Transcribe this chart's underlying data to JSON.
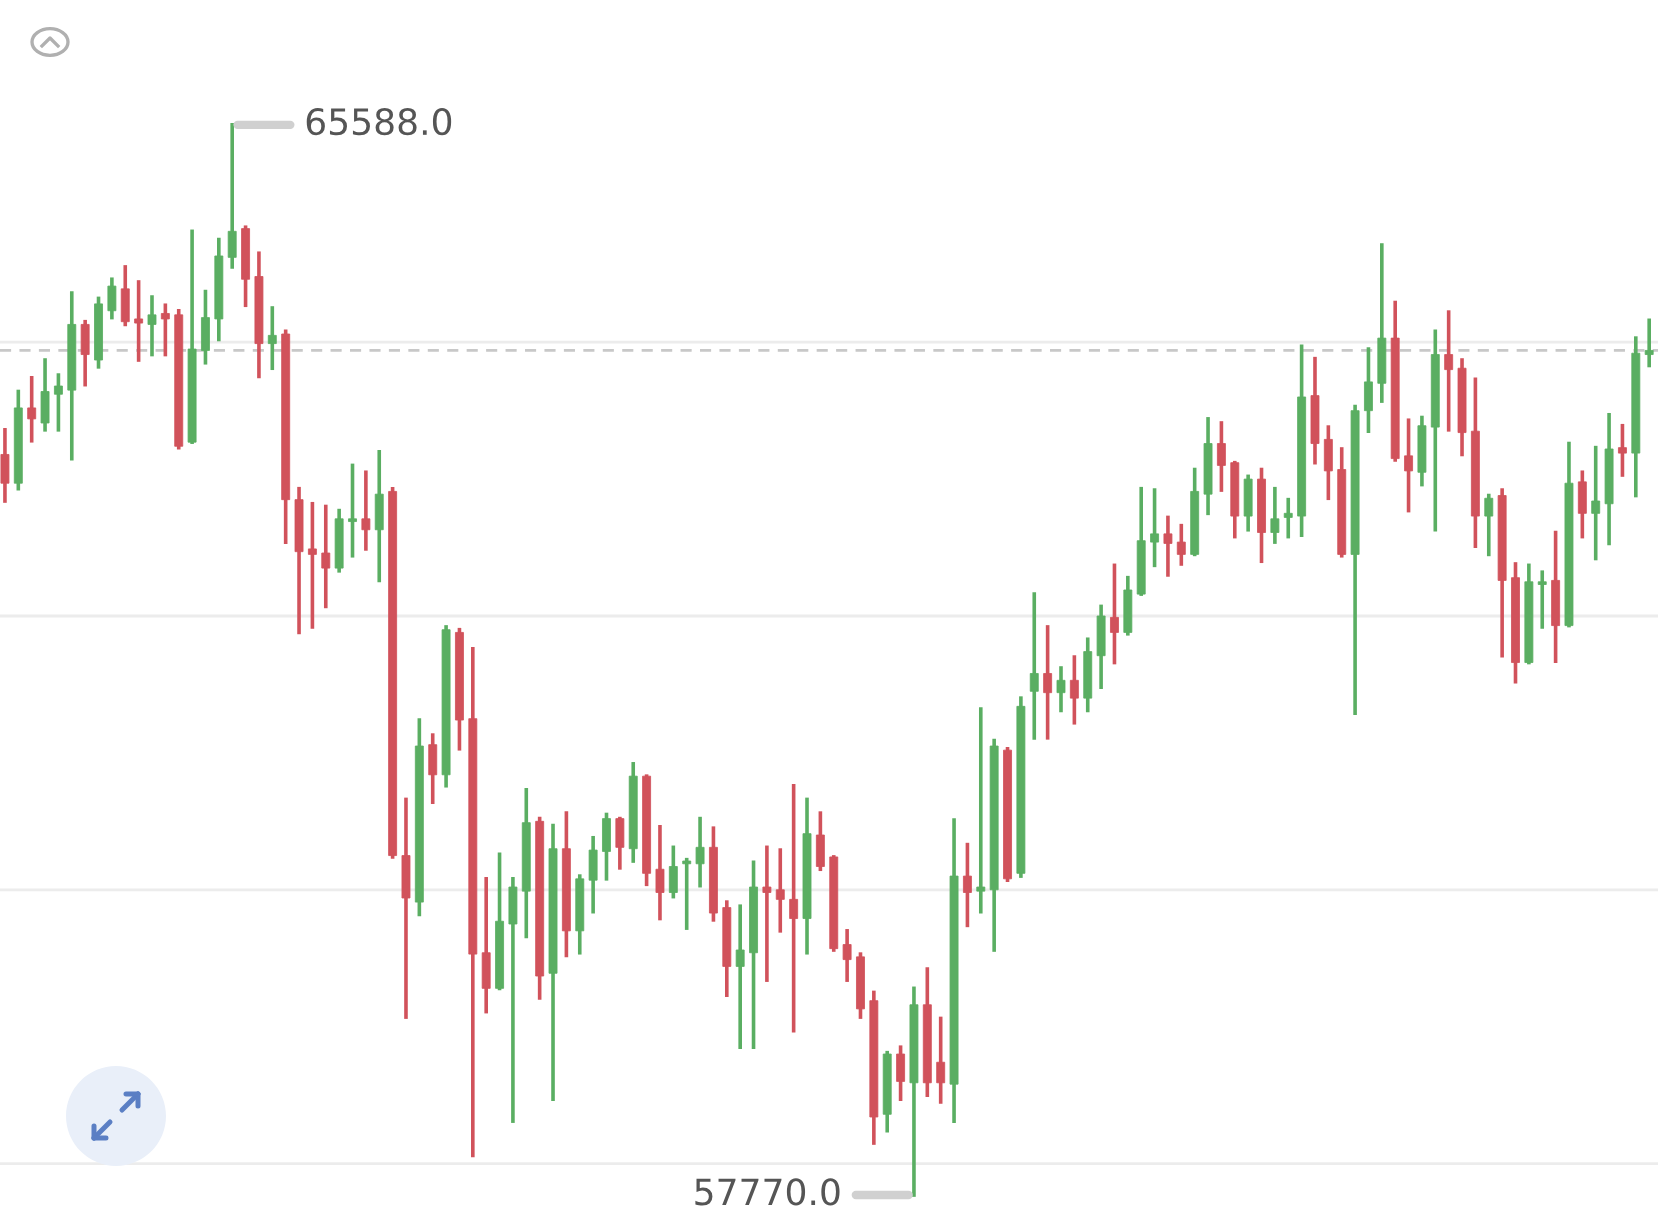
{
  "chart_data": {
    "type": "candlestick",
    "categories": [
      null,
      null,
      null,
      null,
      null,
      null,
      null,
      null,
      null,
      null,
      null,
      null,
      null,
      null,
      null,
      null,
      null,
      null,
      null,
      null,
      null,
      null,
      null,
      null,
      null,
      null,
      null,
      null,
      null,
      null,
      null,
      null,
      null,
      null,
      null,
      null,
      null,
      null,
      null,
      null,
      null,
      null,
      null,
      null,
      null,
      null,
      null,
      null,
      null,
      null,
      null,
      null,
      null,
      null,
      null,
      null,
      null,
      null,
      null,
      null,
      null,
      null,
      null,
      null,
      null,
      null,
      null,
      null,
      null,
      null,
      null,
      null,
      null,
      null,
      null,
      null,
      null,
      null,
      null,
      null,
      null,
      null,
      null,
      null,
      null,
      null,
      null,
      null,
      null,
      null,
      null,
      null,
      null,
      null,
      null,
      null,
      null,
      null,
      null,
      null,
      null,
      null,
      null,
      null,
      null,
      null,
      null,
      null,
      null,
      null,
      null,
      null,
      null,
      null,
      null,
      null,
      null,
      null,
      null,
      null,
      null,
      null,
      null,
      null
    ],
    "ohlc": [
      [
        63180,
        63360,
        62840,
        62970
      ],
      [
        62970,
        63640,
        62930,
        63520
      ],
      [
        63520,
        63740,
        63280,
        63440
      ],
      [
        63410,
        63870,
        63360,
        63640
      ],
      [
        63620,
        63760,
        63360,
        63680
      ],
      [
        63650,
        64360,
        63150,
        64130
      ],
      [
        64130,
        64150,
        63690,
        63910
      ],
      [
        63870,
        64320,
        63820,
        64280
      ],
      [
        64230,
        64460,
        64180,
        64410
      ],
      [
        64390,
        64550,
        64130,
        64150
      ],
      [
        64170,
        64440,
        63870,
        64140
      ],
      [
        64130,
        64330,
        63910,
        64200
      ],
      [
        64210,
        64270,
        63910,
        64170
      ],
      [
        64200,
        64230,
        63230,
        63240
      ],
      [
        63270,
        64810,
        63270,
        63950
      ],
      [
        63940,
        64370,
        63850,
        64180
      ],
      [
        64170,
        64750,
        64020,
        64630
      ],
      [
        64620,
        65588,
        64550,
        64810
      ],
      [
        64830,
        64840,
        64270,
        64460
      ],
      [
        64480,
        64650,
        63750,
        63990
      ],
      [
        63990,
        64250,
        63810,
        64050
      ],
      [
        64060,
        64080,
        62540,
        62850
      ],
      [
        62850,
        62930,
        61880,
        62470
      ],
      [
        62490,
        62820,
        61920,
        62450
      ],
      [
        62460,
        62800,
        62070,
        62350
      ],
      [
        62350,
        62770,
        62330,
        62710
      ],
      [
        62690,
        63100,
        62440,
        62710
      ],
      [
        62710,
        63050,
        62490,
        62630
      ],
      [
        62630,
        63200,
        62260,
        62890
      ],
      [
        62910,
        62930,
        60240,
        60250
      ],
      [
        60250,
        60660,
        59070,
        59940
      ],
      [
        59910,
        61240,
        59820,
        61050
      ],
      [
        61060,
        61130,
        60640,
        60840
      ],
      [
        60840,
        61920,
        60760,
        61900
      ],
      [
        61880,
        61900,
        61030,
        61240
      ],
      [
        61250,
        61760,
        58060,
        59530
      ],
      [
        59540,
        60080,
        59110,
        59280
      ],
      [
        59280,
        60260,
        59280,
        59770
      ],
      [
        59750,
        60080,
        58310,
        60020
      ],
      [
        59990,
        60730,
        59660,
        60490
      ],
      [
        60500,
        60520,
        59210,
        59370
      ],
      [
        59390,
        60470,
        58470,
        60300
      ],
      [
        60300,
        60560,
        59520,
        59700
      ],
      [
        59700,
        60100,
        59540,
        60080
      ],
      [
        60070,
        60380,
        59840,
        60290
      ],
      [
        60280,
        60550,
        60080,
        60520
      ],
      [
        60520,
        60520,
        60160,
        60310
      ],
      [
        60300,
        60920,
        60210,
        60830
      ],
      [
        60830,
        60830,
        60040,
        60120
      ],
      [
        60150,
        60460,
        59790,
        59980
      ],
      [
        59980,
        60310,
        59950,
        60170
      ],
      [
        60190,
        60220,
        59720,
        60210
      ],
      [
        60190,
        60520,
        60030,
        60310
      ],
      [
        60310,
        60450,
        59780,
        59830
      ],
      [
        59870,
        59910,
        59230,
        59440
      ],
      [
        59440,
        59880,
        58850,
        59560
      ],
      [
        59540,
        60200,
        58850,
        60020
      ],
      [
        60020,
        60310,
        59340,
        59980
      ],
      [
        60000,
        60290,
        59700,
        59930
      ],
      [
        59930,
        60760,
        58970,
        59790
      ],
      [
        59790,
        60660,
        59540,
        60410
      ],
      [
        60400,
        60560,
        60150,
        60170
      ],
      [
        60240,
        60240,
        59560,
        59570
      ],
      [
        59600,
        59700,
        59340,
        59490
      ],
      [
        59510,
        59530,
        59070,
        59130
      ],
      [
        59190,
        59250,
        58150,
        58340
      ],
      [
        58360,
        58810,
        58240,
        58800
      ],
      [
        58800,
        58850,
        58470,
        58600
      ],
      [
        58590,
        59280,
        57770,
        59160
      ],
      [
        59160,
        59420,
        58500,
        58590
      ],
      [
        58740,
        59060,
        58450,
        58590
      ],
      [
        58580,
        60510,
        58310,
        60100
      ],
      [
        60100,
        60330,
        59740,
        59980
      ],
      [
        59990,
        61320,
        59840,
        60020
      ],
      [
        60000,
        61090,
        59560,
        61050
      ],
      [
        61020,
        61030,
        60070,
        60080
      ],
      [
        60120,
        61400,
        60100,
        61340
      ],
      [
        61450,
        62160,
        61110,
        61580
      ],
      [
        61580,
        61920,
        61110,
        61440
      ],
      [
        61440,
        61620,
        61310,
        61530
      ],
      [
        61530,
        61700,
        61220,
        61400
      ],
      [
        61400,
        61830,
        61310,
        61740
      ],
      [
        61710,
        62070,
        61480,
        62000
      ],
      [
        61990,
        62370,
        61660,
        61880
      ],
      [
        61880,
        62280,
        61870,
        62190
      ],
      [
        62160,
        62930,
        62160,
        62550
      ],
      [
        62540,
        62920,
        62370,
        62600
      ],
      [
        62600,
        62720,
        62300,
        62530
      ],
      [
        62540,
        62660,
        62380,
        62450
      ],
      [
        62450,
        63070,
        62450,
        62910
      ],
      [
        62890,
        63440,
        62750,
        63260
      ],
      [
        63260,
        63410,
        62920,
        63100
      ],
      [
        63120,
        63120,
        62580,
        62730
      ],
      [
        62730,
        63020,
        62630,
        63000
      ],
      [
        63000,
        63070,
        62400,
        62610
      ],
      [
        62610,
        62930,
        62540,
        62710
      ],
      [
        62720,
        62850,
        62580,
        62750
      ],
      [
        62730,
        63970,
        62590,
        63600
      ],
      [
        63610,
        63880,
        63120,
        63260
      ],
      [
        63290,
        63380,
        62860,
        63060
      ],
      [
        63070,
        63220,
        62440,
        62450
      ],
      [
        62450,
        63530,
        61290,
        63500
      ],
      [
        63500,
        63950,
        63350,
        63710
      ],
      [
        63700,
        64710,
        63570,
        64030
      ],
      [
        64030,
        64290,
        63140,
        63150
      ],
      [
        63170,
        63430,
        62770,
        63060
      ],
      [
        63050,
        63450,
        62960,
        63390
      ],
      [
        63380,
        64080,
        62630,
        63910
      ],
      [
        63910,
        64220,
        63360,
        63800
      ],
      [
        63810,
        63870,
        63180,
        63340
      ],
      [
        63350,
        63730,
        62510,
        62730
      ],
      [
        62730,
        62880,
        62450,
        62860
      ],
      [
        62880,
        62920,
        61710,
        62260
      ],
      [
        62280,
        62380,
        61520,
        61660
      ],
      [
        61660,
        62370,
        61660,
        62250
      ],
      [
        62230,
        62320,
        61920,
        62250
      ],
      [
        62260,
        62610,
        61670,
        61930
      ],
      [
        61930,
        63260,
        61930,
        62970
      ],
      [
        62980,
        63050,
        62580,
        62750
      ],
      [
        62750,
        63230,
        62420,
        62840
      ],
      [
        62820,
        63470,
        62530,
        63220
      ],
      [
        63230,
        63390,
        63030,
        63190
      ],
      [
        63190,
        64030,
        62880,
        63920
      ],
      [
        63910,
        64160,
        63830,
        63940
      ]
    ],
    "colors": [
      "#d1525b",
      "#5aae62",
      "#d1525b",
      "#5aae62",
      "#5aae62",
      "#5aae62",
      "#d1525b",
      "#5aae62",
      "#5aae62",
      "#d1525b",
      "#d1525b",
      "#5aae62",
      "#d1525b",
      "#d1525b",
      "#5aae62",
      "#5aae62",
      "#5aae62",
      "#5aae62",
      "#d1525b",
      "#d1525b",
      "#5aae62",
      "#d1525b",
      "#d1525b",
      "#d1525b",
      "#d1525b",
      "#5aae62",
      "#5aae62",
      "#d1525b",
      "#5aae62",
      "#d1525b",
      "#d1525b",
      "#5aae62",
      "#d1525b",
      "#5aae62",
      "#d1525b",
      "#d1525b",
      "#d1525b",
      "#5aae62",
      "#5aae62",
      "#5aae62",
      "#d1525b",
      "#5aae62",
      "#d1525b",
      "#5aae62",
      "#5aae62",
      "#5aae62",
      "#d1525b",
      "#5aae62",
      "#d1525b",
      "#d1525b",
      "#5aae62",
      "#5aae62",
      "#5aae62",
      "#d1525b",
      "#d1525b",
      "#5aae62",
      "#5aae62",
      "#d1525b",
      "#d1525b",
      "#d1525b",
      "#5aae62",
      "#d1525b",
      "#d1525b",
      "#d1525b",
      "#d1525b",
      "#d1525b",
      "#5aae62",
      "#d1525b",
      "#5aae62",
      "#d1525b",
      "#d1525b",
      "#5aae62",
      "#d1525b",
      "#5aae62",
      "#5aae62",
      "#d1525b",
      "#5aae62",
      "#5aae62",
      "#d1525b",
      "#5aae62",
      "#d1525b",
      "#5aae62",
      "#5aae62",
      "#d1525b",
      "#5aae62",
      "#5aae62",
      "#5aae62",
      "#d1525b",
      "#d1525b",
      "#5aae62",
      "#5aae62",
      "#d1525b",
      "#d1525b",
      "#5aae62",
      "#d1525b",
      "#5aae62",
      "#5aae62",
      "#5aae62",
      "#d1525b",
      "#d1525b",
      "#d1525b",
      "#5aae62",
      "#5aae62",
      "#5aae62",
      "#d1525b",
      "#d1525b",
      "#5aae62",
      "#5aae62",
      "#d1525b",
      "#d1525b",
      "#d1525b",
      "#5aae62",
      "#d1525b",
      "#d1525b",
      "#5aae62",
      "#5aae62",
      "#d1525b",
      "#5aae62",
      "#d1525b",
      "#5aae62",
      "#5aae62",
      "#d1525b",
      "#5aae62",
      "#5aae62"
    ],
    "ylim": [
      57500,
      66500
    ],
    "yticks": [
      {
        "value": 58000,
        "label": null
      },
      {
        "value": 60000,
        "label": null
      },
      {
        "value": 62000,
        "label": null
      },
      {
        "value": 64000,
        "label": null
      }
    ],
    "grid": "y",
    "ref_lines": [
      {
        "axis": "y",
        "value": 63940,
        "color": "#c8c8c8",
        "line_style": "dashed"
      }
    ],
    "annotations": [
      "65588.0",
      "57770.0"
    ]
  }
}
